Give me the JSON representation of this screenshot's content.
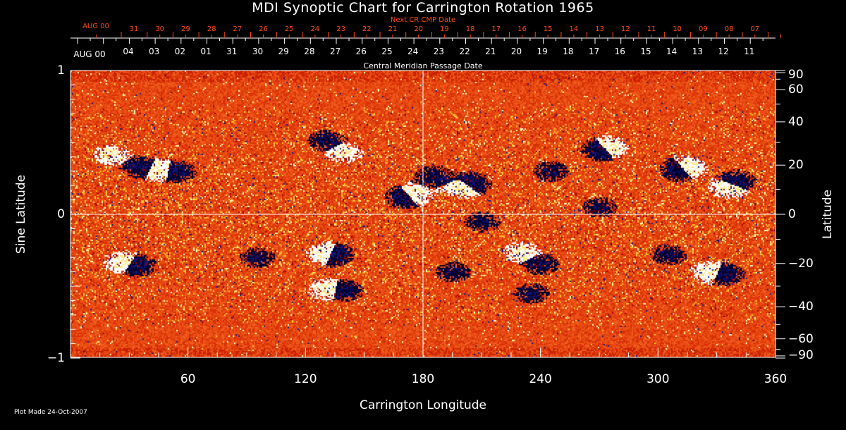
{
  "chart_data": {
    "type": "heatmap",
    "title": "MDI Synoptic Chart for Carrington Rotation 1965",
    "xlabel": "Carrington Longitude",
    "ylabel": "Sine Latitude",
    "y2label": "Latitude",
    "xlim": [
      0,
      360
    ],
    "ylim": [
      -1,
      1
    ],
    "x_ticks": [
      "60",
      "120",
      "180",
      "240",
      "300",
      "360"
    ],
    "x_tick_values": [
      60,
      120,
      180,
      240,
      300,
      360
    ],
    "y_ticks": [
      "1",
      "0",
      "−1"
    ],
    "y_tick_values": [
      1,
      0,
      -1
    ],
    "y2_ticks": [
      "90",
      "60",
      "40",
      "20",
      "0",
      "−20",
      "−40",
      "−60",
      "−90"
    ],
    "y2_tick_values": [
      90,
      60,
      40,
      20,
      0,
      -20,
      -40,
      -60,
      -90
    ],
    "grid": "lines at 180 longitude and 0 latitude",
    "colors": {
      "background": "#e84a10",
      "positive": "#ffffff",
      "negative": "#000040",
      "speckle": "#ffd040"
    },
    "top_axis_cmp": {
      "label": "Central Meridian Passage Date",
      "start": "AUG 00",
      "dates": [
        "04",
        "03",
        "02",
        "01",
        "31",
        "30",
        "29",
        "28",
        "27",
        "26",
        "25",
        "24",
        "23",
        "22",
        "21",
        "20",
        "19",
        "18",
        "17",
        "16",
        "15",
        "14",
        "13",
        "12",
        "11"
      ]
    },
    "top_axis_next_cmp": {
      "label": "Next CR CMP Date",
      "start": "AUG 00",
      "dates": [
        "31",
        "30",
        "29",
        "28",
        "27",
        "26",
        "25",
        "24",
        "23",
        "22",
        "21",
        "20",
        "19",
        "18",
        "17",
        "16",
        "15",
        "14",
        "13",
        "12",
        "11",
        "10",
        "09",
        "08",
        "07"
      ]
    }
  },
  "footer": {
    "plot_made": "Plot Made 24-Oct-2007"
  }
}
